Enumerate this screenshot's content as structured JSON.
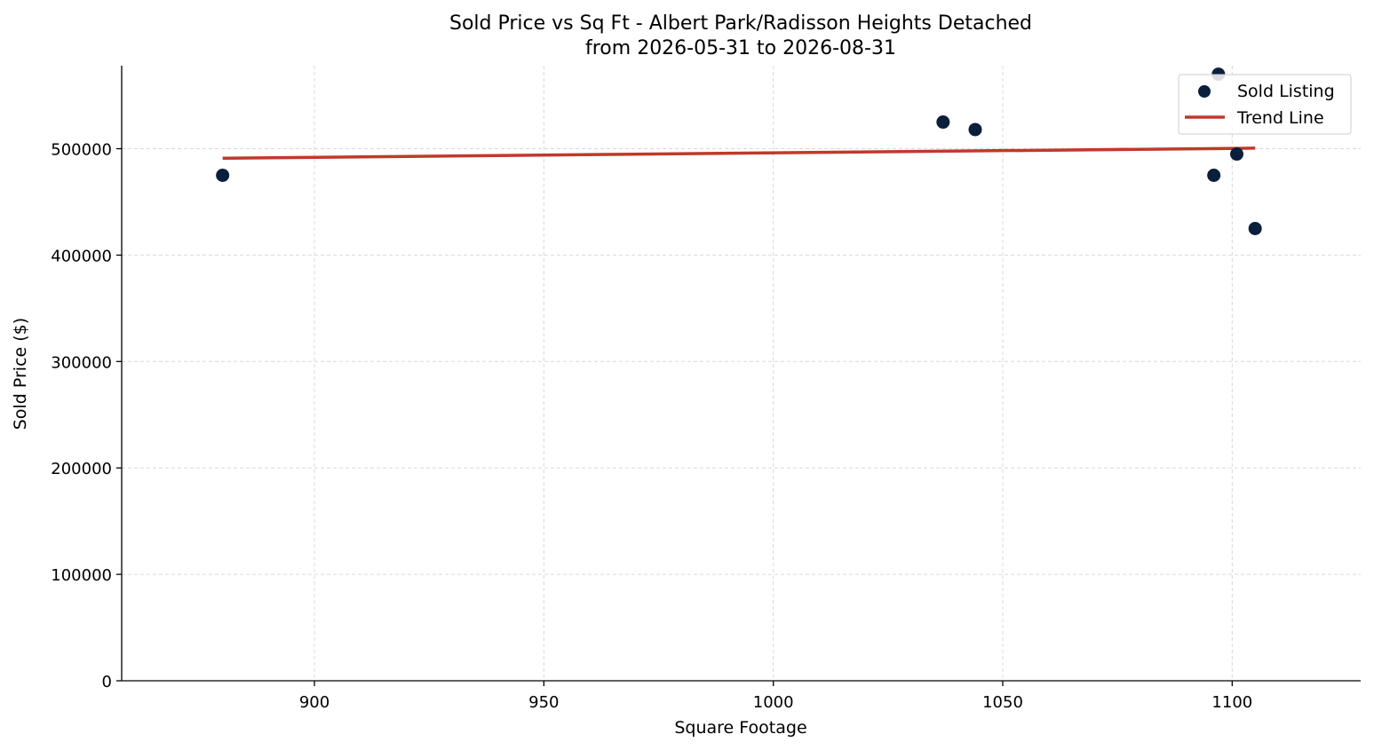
{
  "chart_data": {
    "type": "scatter",
    "title": "Sold Price vs Sq Ft - Albert Park/Radisson Heights Detached",
    "subtitle": "from 2026-05-31 to 2026-08-31",
    "xlabel": "Square Footage",
    "ylabel": "Sold Price ($)",
    "xlim": [
      858,
      1128
    ],
    "ylim": [
      0,
      578000
    ],
    "xticks": [
      900,
      950,
      1000,
      1050,
      1100
    ],
    "yticks": [
      0,
      100000,
      200000,
      300000,
      400000,
      500000
    ],
    "grid": true,
    "legend_position": "top-right",
    "colors": {
      "points": "#0a1f3c",
      "trend": "#c0392b"
    },
    "series": [
      {
        "name": "Sold Listing",
        "type": "scatter",
        "points": [
          {
            "x": 880,
            "y": 475000
          },
          {
            "x": 1037,
            "y": 525000
          },
          {
            "x": 1044,
            "y": 518000
          },
          {
            "x": 1096,
            "y": 475000
          },
          {
            "x": 1097,
            "y": 570000
          },
          {
            "x": 1101,
            "y": 495000
          },
          {
            "x": 1105,
            "y": 425000
          }
        ]
      },
      {
        "name": "Trend Line",
        "type": "line",
        "points": [
          {
            "x": 880,
            "y": 491000
          },
          {
            "x": 1105,
            "y": 500500
          }
        ]
      }
    ]
  }
}
